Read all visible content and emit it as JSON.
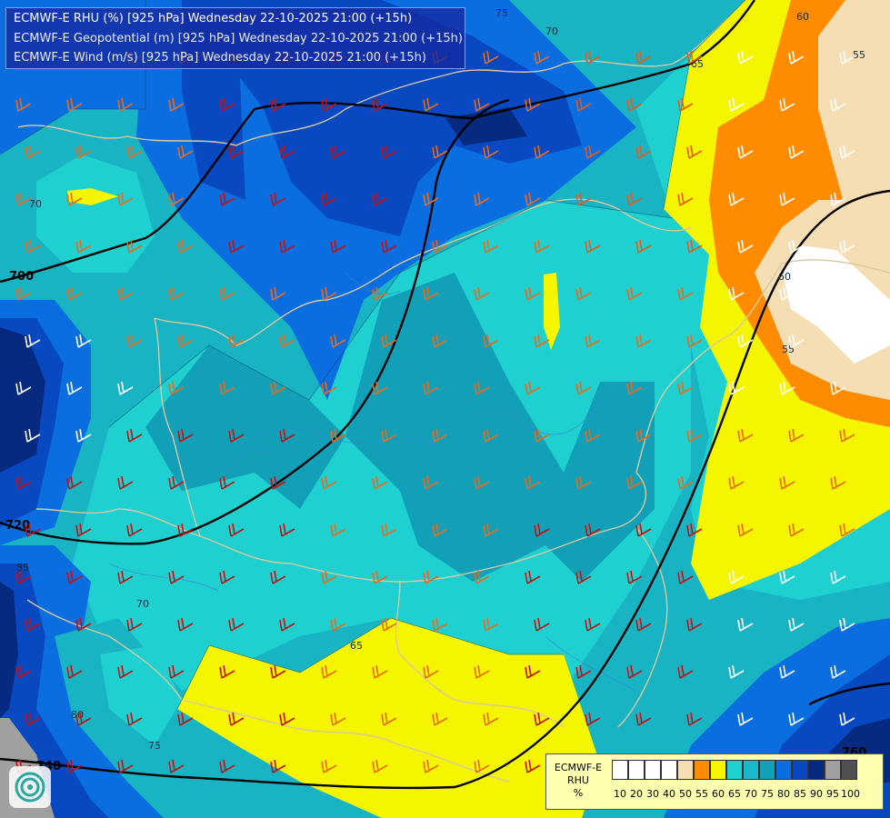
{
  "header": {
    "line1": "ECMWF-E RHU (%) [925 hPa] Wednesday 22-10-2025 21:00 (+15h)",
    "line2": "ECMWF-E Geopotential (m) [925 hPa] Wednesday 22-10-2025 21:00 (+15h)",
    "line3": "ECMWF-E Wind (m/s) [925 hPa] Wednesday 22-10-2025 21:00 (+15h)"
  },
  "legend": {
    "title_line1": "ECMWF-E",
    "title_line2": "RHU",
    "title_line3": "%",
    "levels": [
      "10",
      "20",
      "30",
      "40",
      "50",
      "55",
      "60",
      "65",
      "70",
      "75",
      "80",
      "85",
      "90",
      "95",
      "100"
    ],
    "colors": [
      "#ffffff",
      "#ffffff",
      "#ffffff",
      "#ffffff",
      "#f5deb3",
      "#ff8c00",
      "#f5f500",
      "#1fd0d0",
      "#1ab8c8",
      "#12a0b8",
      "#0a6ee0",
      "#0848c0",
      "#062a80",
      "#a0a0a0",
      "#505050"
    ]
  },
  "geopotential_labels": [
    "700",
    "720",
    "740",
    "760"
  ],
  "rhu_labels": [
    "55",
    "60",
    "65",
    "70",
    "75",
    "80",
    "85"
  ],
  "logo": {
    "name": "ecmwf-logo"
  },
  "colors": {
    "rhu_55": "#f5deb3",
    "rhu_60": "#ff8c00",
    "rhu_65": "#f5f500",
    "rhu_70": "#1fd0d0",
    "rhu_75": "#18b4c4",
    "rhu_80": "#0a6ee0",
    "rhu_85": "#0848c0",
    "rhu_90": "#062a80",
    "rhu_95": "#a0a0a0",
    "border": "#d8c8a0",
    "geopotential": "#000000"
  }
}
